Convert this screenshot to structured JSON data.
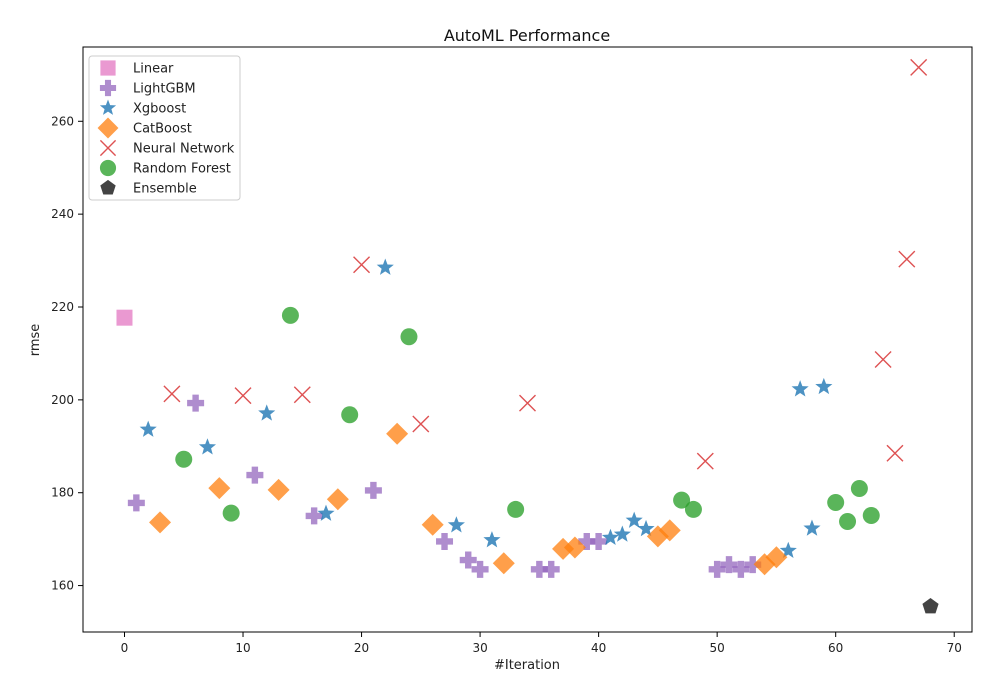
{
  "chart_data": {
    "type": "scatter",
    "title": "AutoML Performance",
    "xlabel": "#Iteration",
    "ylabel": "rmse",
    "xlim": [
      -3.5,
      71.5
    ],
    "ylim": [
      150,
      276
    ],
    "xticks": [
      0,
      10,
      20,
      30,
      40,
      50,
      60,
      70
    ],
    "yticks": [
      160,
      180,
      200,
      220,
      240,
      260
    ],
    "grid": false,
    "legend": "top-left",
    "series": [
      {
        "name": "Linear",
        "marker": "square",
        "color": "#e377c2",
        "points": [
          [
            0,
            217.7
          ]
        ]
      },
      {
        "name": "LightGBM",
        "marker": "plus",
        "color": "#9467bd",
        "points": [
          [
            1,
            177.8
          ],
          [
            6,
            199.3
          ],
          [
            11,
            183.8
          ],
          [
            16,
            175.0
          ],
          [
            21,
            180.5
          ],
          [
            27,
            169.5
          ],
          [
            29,
            165.5
          ],
          [
            30,
            163.5
          ],
          [
            35,
            163.5
          ],
          [
            36,
            163.5
          ],
          [
            39,
            169.5
          ],
          [
            40,
            169.5
          ],
          [
            50,
            163.5
          ],
          [
            51,
            164.5
          ],
          [
            52,
            163.5
          ],
          [
            53,
            164.5
          ]
        ]
      },
      {
        "name": "Xgboost",
        "marker": "star",
        "color": "#1f77b4",
        "points": [
          [
            2,
            193.6
          ],
          [
            7,
            189.8
          ],
          [
            12,
            197.1
          ],
          [
            17,
            175.5
          ],
          [
            22,
            228.5
          ],
          [
            28,
            173.0
          ],
          [
            31,
            169.8
          ],
          [
            41,
            170.3
          ],
          [
            42,
            171.0
          ],
          [
            43,
            174.0
          ],
          [
            44,
            172.2
          ],
          [
            56,
            167.5
          ],
          [
            57,
            202.3
          ],
          [
            58,
            172.3
          ],
          [
            59,
            202.8
          ]
        ]
      },
      {
        "name": "CatBoost",
        "marker": "diamond",
        "color": "#ff7f0e",
        "points": [
          [
            3,
            173.6
          ],
          [
            8,
            181.0
          ],
          [
            13,
            180.6
          ],
          [
            18,
            178.6
          ],
          [
            23,
            192.7
          ],
          [
            26,
            173.1
          ],
          [
            32,
            164.8
          ],
          [
            37,
            167.9
          ],
          [
            38,
            168.2
          ],
          [
            45,
            170.6
          ],
          [
            46,
            171.9
          ],
          [
            54,
            164.6
          ],
          [
            55,
            166.1
          ]
        ]
      },
      {
        "name": "Neural Network",
        "marker": "x",
        "color": "#d62728",
        "points": [
          [
            4,
            201.3
          ],
          [
            10,
            200.9
          ],
          [
            15,
            201.1
          ],
          [
            20,
            229.1
          ],
          [
            25,
            194.8
          ],
          [
            34,
            199.3
          ],
          [
            49,
            186.8
          ],
          [
            64,
            208.7
          ],
          [
            65,
            188.5
          ],
          [
            66,
            230.3
          ],
          [
            67,
            271.6
          ]
        ]
      },
      {
        "name": "Random Forest",
        "marker": "circle",
        "color": "#2ca02c",
        "points": [
          [
            5,
            187.2
          ],
          [
            9,
            175.6
          ],
          [
            14,
            218.2
          ],
          [
            19,
            196.8
          ],
          [
            24,
            213.6
          ],
          [
            33,
            176.4
          ],
          [
            47,
            178.4
          ],
          [
            48,
            176.4
          ],
          [
            60,
            177.9
          ],
          [
            61,
            173.8
          ],
          [
            62,
            180.9
          ],
          [
            63,
            175.1
          ]
        ]
      },
      {
        "name": "Ensemble",
        "marker": "pentagon",
        "color": "#222222",
        "points": [
          [
            68,
            155.5
          ]
        ]
      }
    ]
  }
}
